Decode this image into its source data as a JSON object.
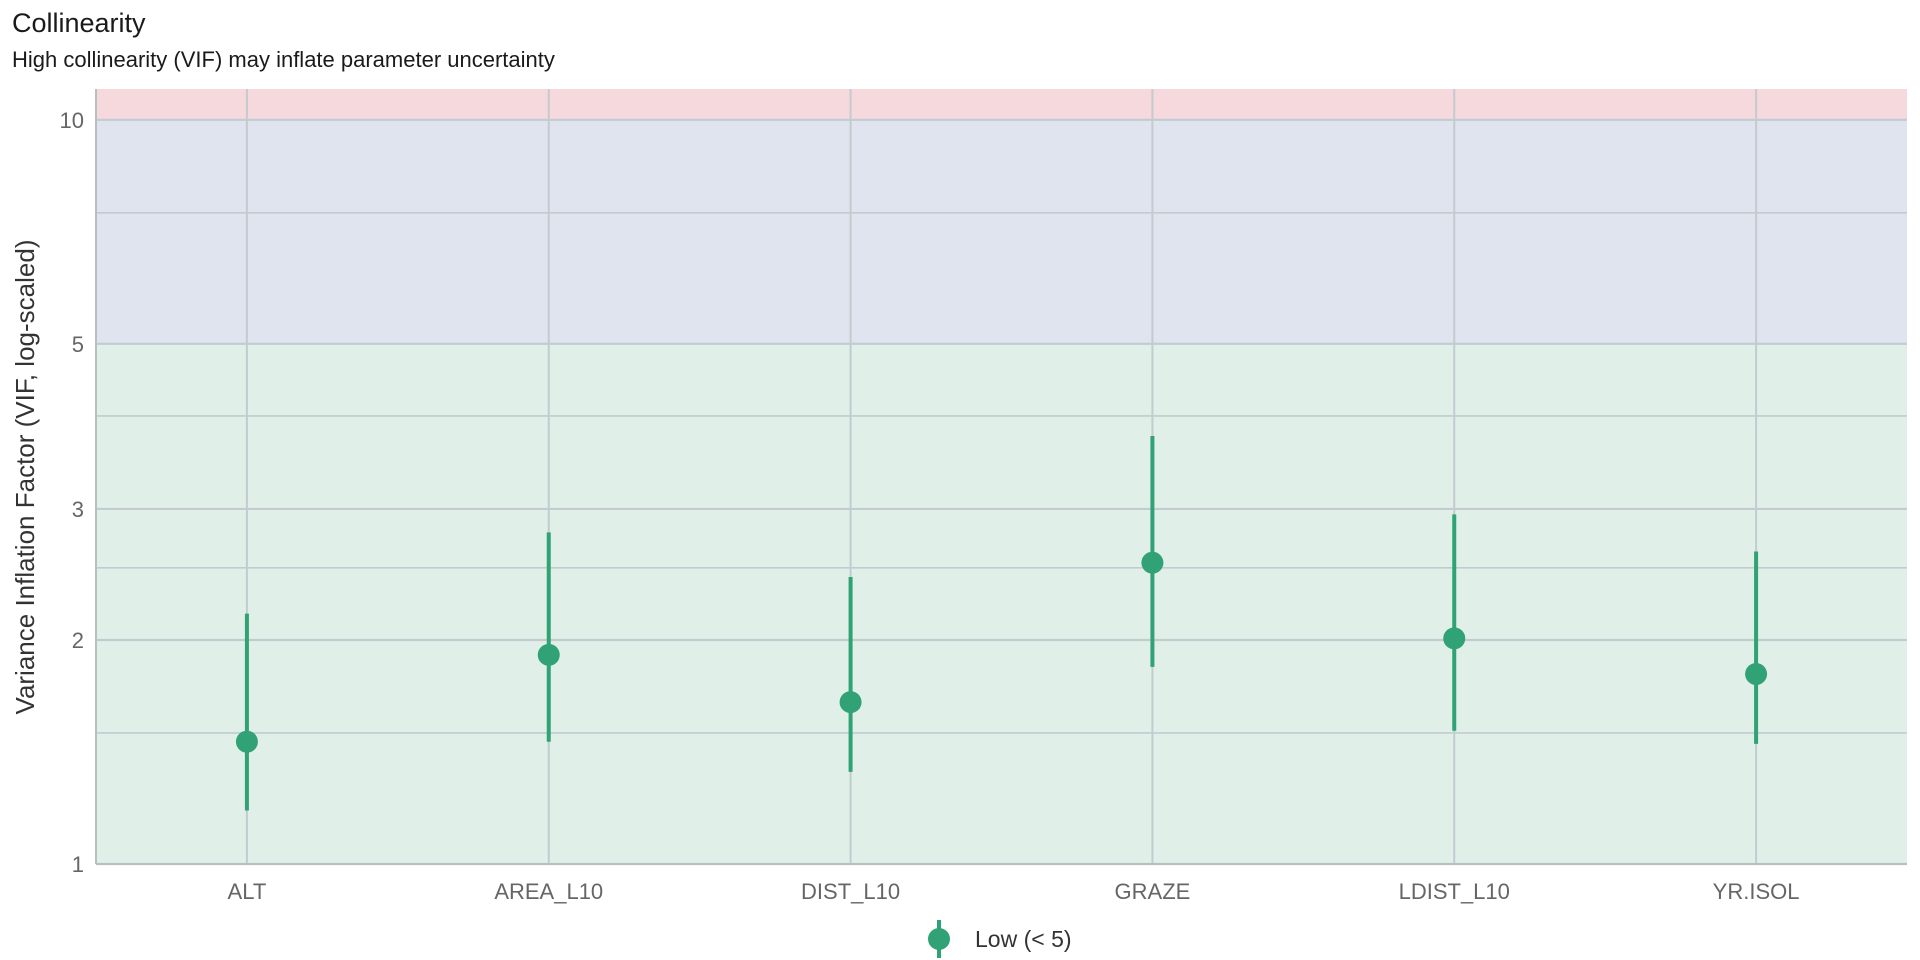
{
  "title": "Collinearity",
  "subtitle": "High collinearity (VIF) may inflate parameter uncertainty",
  "chart_data": {
    "type": "scatter",
    "subtype": "point-range",
    "title": "Collinearity",
    "subtitle": "High collinearity (VIF) may inflate parameter uncertainty",
    "xlabel": "",
    "ylabel": "Variance Inflation Factor (VIF, log-scaled)",
    "y_scale": "log",
    "ylim": [
      1,
      11
    ],
    "y_ticks": [
      1,
      2,
      3,
      5,
      10
    ],
    "y_minor_ticks": [
      1.5,
      2.5,
      4,
      7.5
    ],
    "grid": true,
    "categories": [
      "ALT",
      "AREA_L10",
      "DIST_L10",
      "GRAZE",
      "LDIST_L10",
      "YR.ISOL"
    ],
    "series": [
      {
        "name": "Low (< 5)",
        "color": "#31a275",
        "values": [
          1.46,
          1.91,
          1.65,
          2.54,
          2.01,
          1.8
        ],
        "lower": [
          1.18,
          1.46,
          1.33,
          1.84,
          1.51,
          1.45
        ],
        "upper": [
          2.17,
          2.79,
          2.43,
          3.76,
          2.95,
          2.63
        ]
      }
    ],
    "bands": [
      {
        "from": 1,
        "to": 5,
        "color": "#e0f0e8"
      },
      {
        "from": 5,
        "to": 10,
        "color": "#dfe4ef"
      },
      {
        "from": 10,
        "to": 11,
        "color": "#f5d9dd"
      }
    ],
    "legend": {
      "position": "bottom",
      "entries": [
        "Low (< 5)"
      ]
    }
  }
}
